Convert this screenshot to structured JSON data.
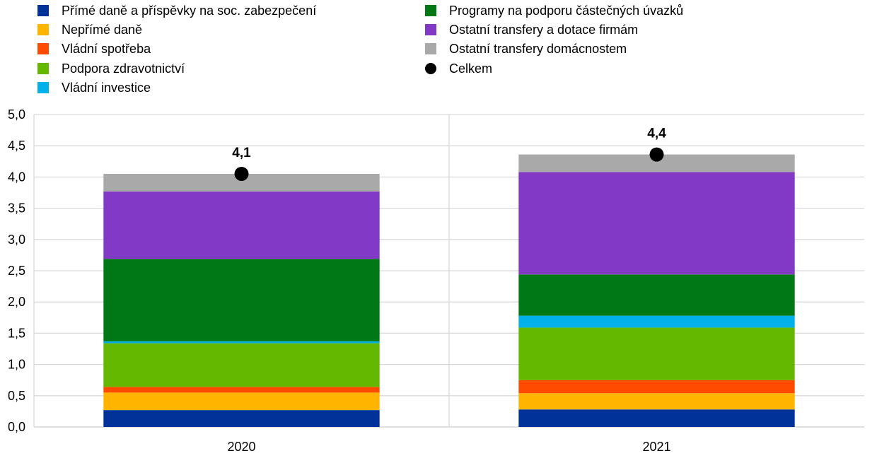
{
  "chart_data": {
    "type": "bar",
    "stacked": true,
    "categories": [
      "2020",
      "2021"
    ],
    "ylim": [
      0,
      5
    ],
    "yticks": [
      "0,0",
      "0,5",
      "1,0",
      "1,5",
      "2,0",
      "2,5",
      "3,0",
      "3,5",
      "4,0",
      "4,5",
      "5,0"
    ],
    "grid": true,
    "legend_placement": "top",
    "series": [
      {
        "name": "Přímé daně a příspěvky na soc. zabezpečení",
        "color": "#003299",
        "values": [
          0.27,
          0.28
        ]
      },
      {
        "name": "Nepřímé daně",
        "color": "#FFB400",
        "values": [
          0.28,
          0.26
        ]
      },
      {
        "name": "Vládní spotřeba",
        "color": "#FF4B00",
        "values": [
          0.09,
          0.21
        ]
      },
      {
        "name": "Podpora zdravotnictví",
        "color": "#65B800",
        "values": [
          0.7,
          0.84
        ]
      },
      {
        "name": "Vládní investice",
        "color": "#00B1EA",
        "values": [
          0.03,
          0.19
        ]
      },
      {
        "name": "Programy na podporu částečných úvazků",
        "color": "#007816",
        "values": [
          1.32,
          0.66
        ]
      },
      {
        "name": "Ostatní transfery a dotace firmám",
        "color": "#8139C6",
        "values": [
          1.08,
          1.64
        ]
      },
      {
        "name": "Ostatní transfery domácnostem",
        "color": "#A9A9A9",
        "values": [
          0.28,
          0.28
        ]
      }
    ],
    "total": {
      "name": "Celkem",
      "color": "#000000",
      "values": [
        4.05,
        4.36
      ],
      "labels": [
        "4,1",
        "4,4"
      ]
    }
  }
}
